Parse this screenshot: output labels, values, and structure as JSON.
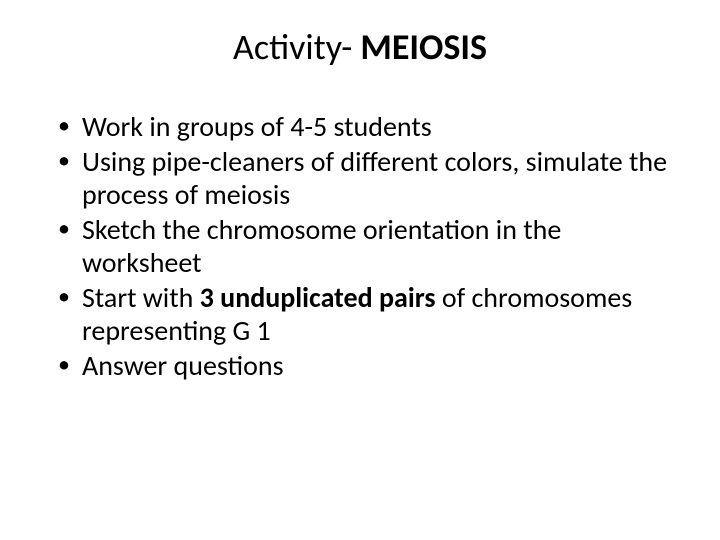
{
  "title_prefix": "Activity- ",
  "title_bold": "MEIOSIS",
  "bullets": [
    {
      "parts": [
        {
          "t": "Work in groups of 4-5 students",
          "b": false
        }
      ]
    },
    {
      "parts": [
        {
          "t": "Using pipe-cleaners of different colors, simulate the process of meiosis",
          "b": false
        }
      ]
    },
    {
      "parts": [
        {
          "t": "Sketch the chromosome orientation in the worksheet",
          "b": false
        }
      ]
    },
    {
      "parts": [
        {
          "t": "Start with ",
          "b": false
        },
        {
          "t": "3 unduplicated pairs",
          "b": true
        },
        {
          "t": " of chromosomes representing G 1",
          "b": false
        }
      ]
    },
    {
      "parts": [
        {
          "t": "Answer questions",
          "b": false
        }
      ]
    }
  ],
  "colors": {
    "background": "#ffffff",
    "text": "#000000"
  },
  "typography": {
    "title_fontsize": 36,
    "body_fontsize": 28,
    "font_family": "Calibri"
  }
}
